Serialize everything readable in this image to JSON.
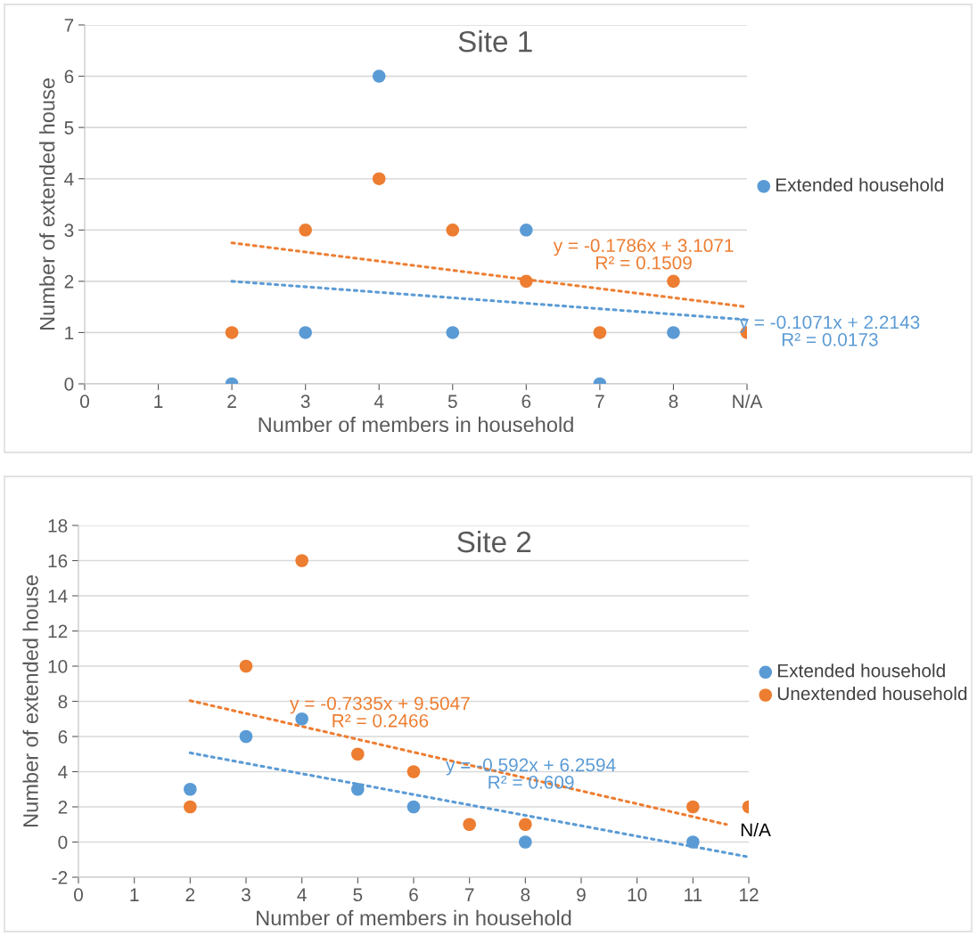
{
  "chart_data": [
    {
      "type": "scatter",
      "title": "Site 1",
      "xlabel": "Number of members in household",
      "ylabel": "Number of extended house",
      "xlim": [
        0,
        9
      ],
      "xticks": [
        0,
        1,
        2,
        3,
        4,
        5,
        6,
        7,
        8,
        {
          "value": 9,
          "label": "N/A"
        }
      ],
      "ylim": [
        0,
        7
      ],
      "yticks": [
        0,
        1,
        2,
        3,
        4,
        5,
        6,
        7
      ],
      "grid": "y",
      "legend": "right",
      "marker": "circle",
      "series": [
        {
          "name": "Extended household",
          "color": "#5b9bd5",
          "x": [
            2,
            3,
            4,
            5,
            6,
            7,
            8
          ],
          "values": [
            0,
            1,
            6,
            1,
            3,
            0,
            1
          ]
        },
        {
          "color": "#ed7d31",
          "x": [
            2,
            3,
            4,
            5,
            6,
            7,
            8,
            9
          ],
          "values": [
            1,
            3,
            4,
            3,
            2,
            1,
            2,
            1
          ]
        },
        {
          "type": "line",
          "line_style": "dotted",
          "marker": "none",
          "color": "#ed7d31",
          "x": [
            2,
            9
          ],
          "values": [
            2.75,
            1.5
          ]
        },
        {
          "type": "line",
          "line_style": "dotted",
          "marker": "none",
          "color": "#5b9bd5",
          "x": [
            2,
            9
          ],
          "values": [
            2.0,
            1.25
          ]
        }
      ],
      "annotations": [
        "y = -0.1786x + 3.1071\nR² = 0.1509",
        "y = -0.1071x + 2.2143\nR² = 0.0173"
      ]
    },
    {
      "type": "scatter",
      "title": "Site 2",
      "xlabel": "Number of members in household",
      "ylabel": "Number of extended house",
      "xlim": [
        0,
        12
      ],
      "xticks": [
        0,
        1,
        2,
        3,
        4,
        5,
        6,
        7,
        8,
        9,
        10,
        11,
        12
      ],
      "ylim": [
        -2,
        18
      ],
      "yticks": [
        -2,
        0,
        2,
        4,
        6,
        8,
        10,
        12,
        14,
        16,
        18
      ],
      "grid": "y",
      "legend": "right",
      "marker": "circle",
      "series": [
        {
          "name": "Extended household",
          "color": "#5b9bd5",
          "x": [
            2,
            3,
            4,
            5,
            6,
            8,
            11
          ],
          "values": [
            3,
            6,
            7,
            3,
            2,
            0,
            0
          ]
        },
        {
          "name": "Unextended household",
          "color": "#ed7d31",
          "x": [
            2,
            3,
            4,
            5,
            6,
            7,
            8,
            11,
            12
          ],
          "values": [
            2,
            10,
            16,
            5,
            4,
            1,
            1,
            2,
            2
          ]
        },
        {
          "type": "line",
          "line_style": "dotted",
          "marker": "none",
          "color": "#ed7d31",
          "x": [
            2,
            11.6
          ],
          "values": [
            8.04,
            1.0
          ]
        },
        {
          "type": "line",
          "line_style": "dotted",
          "marker": "none",
          "color": "#5b9bd5",
          "x": [
            2,
            12
          ],
          "values": [
            5.07,
            -0.85
          ]
        }
      ],
      "annotations": [
        "y = -0.7335x + 9.5047\nR² = 0.2466",
        "y = -0.592x + 6.2594\nR² = 0.609",
        "N/A"
      ]
    }
  ]
}
